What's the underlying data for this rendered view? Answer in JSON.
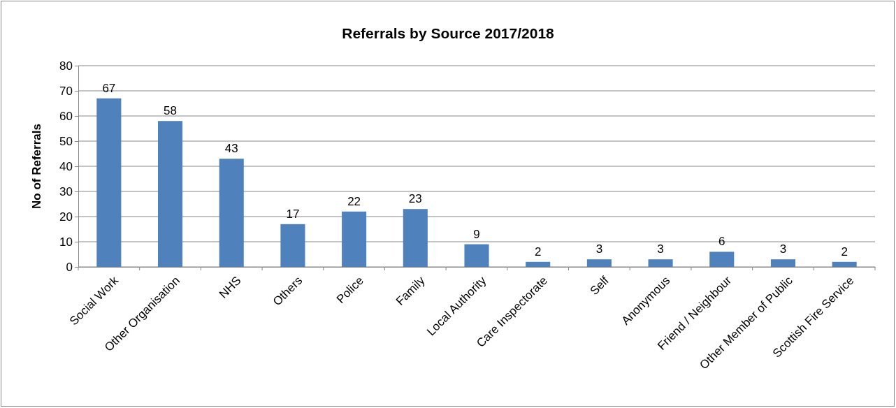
{
  "chart_data": {
    "type": "bar",
    "title": "Referrals by Source 2017/2018",
    "ylabel": "No of Referrals",
    "categories": [
      "Social Work",
      "Other Organisation",
      "NHS",
      "Others",
      "Police",
      "Family",
      "Local Authority",
      "Care Inspectorate",
      "Self",
      "Anonymous",
      "Friend / Neighbour",
      "Other Member of Public",
      "Scottish Fire Service"
    ],
    "values": [
      67,
      58,
      43,
      17,
      22,
      23,
      9,
      2,
      3,
      3,
      6,
      3,
      2
    ],
    "color": "#4f81bd",
    "ylim": [
      0,
      80
    ],
    "yticks": [
      0,
      10,
      20,
      30,
      40,
      50,
      60,
      70,
      80
    ],
    "grid": "y",
    "data_labels": true
  }
}
